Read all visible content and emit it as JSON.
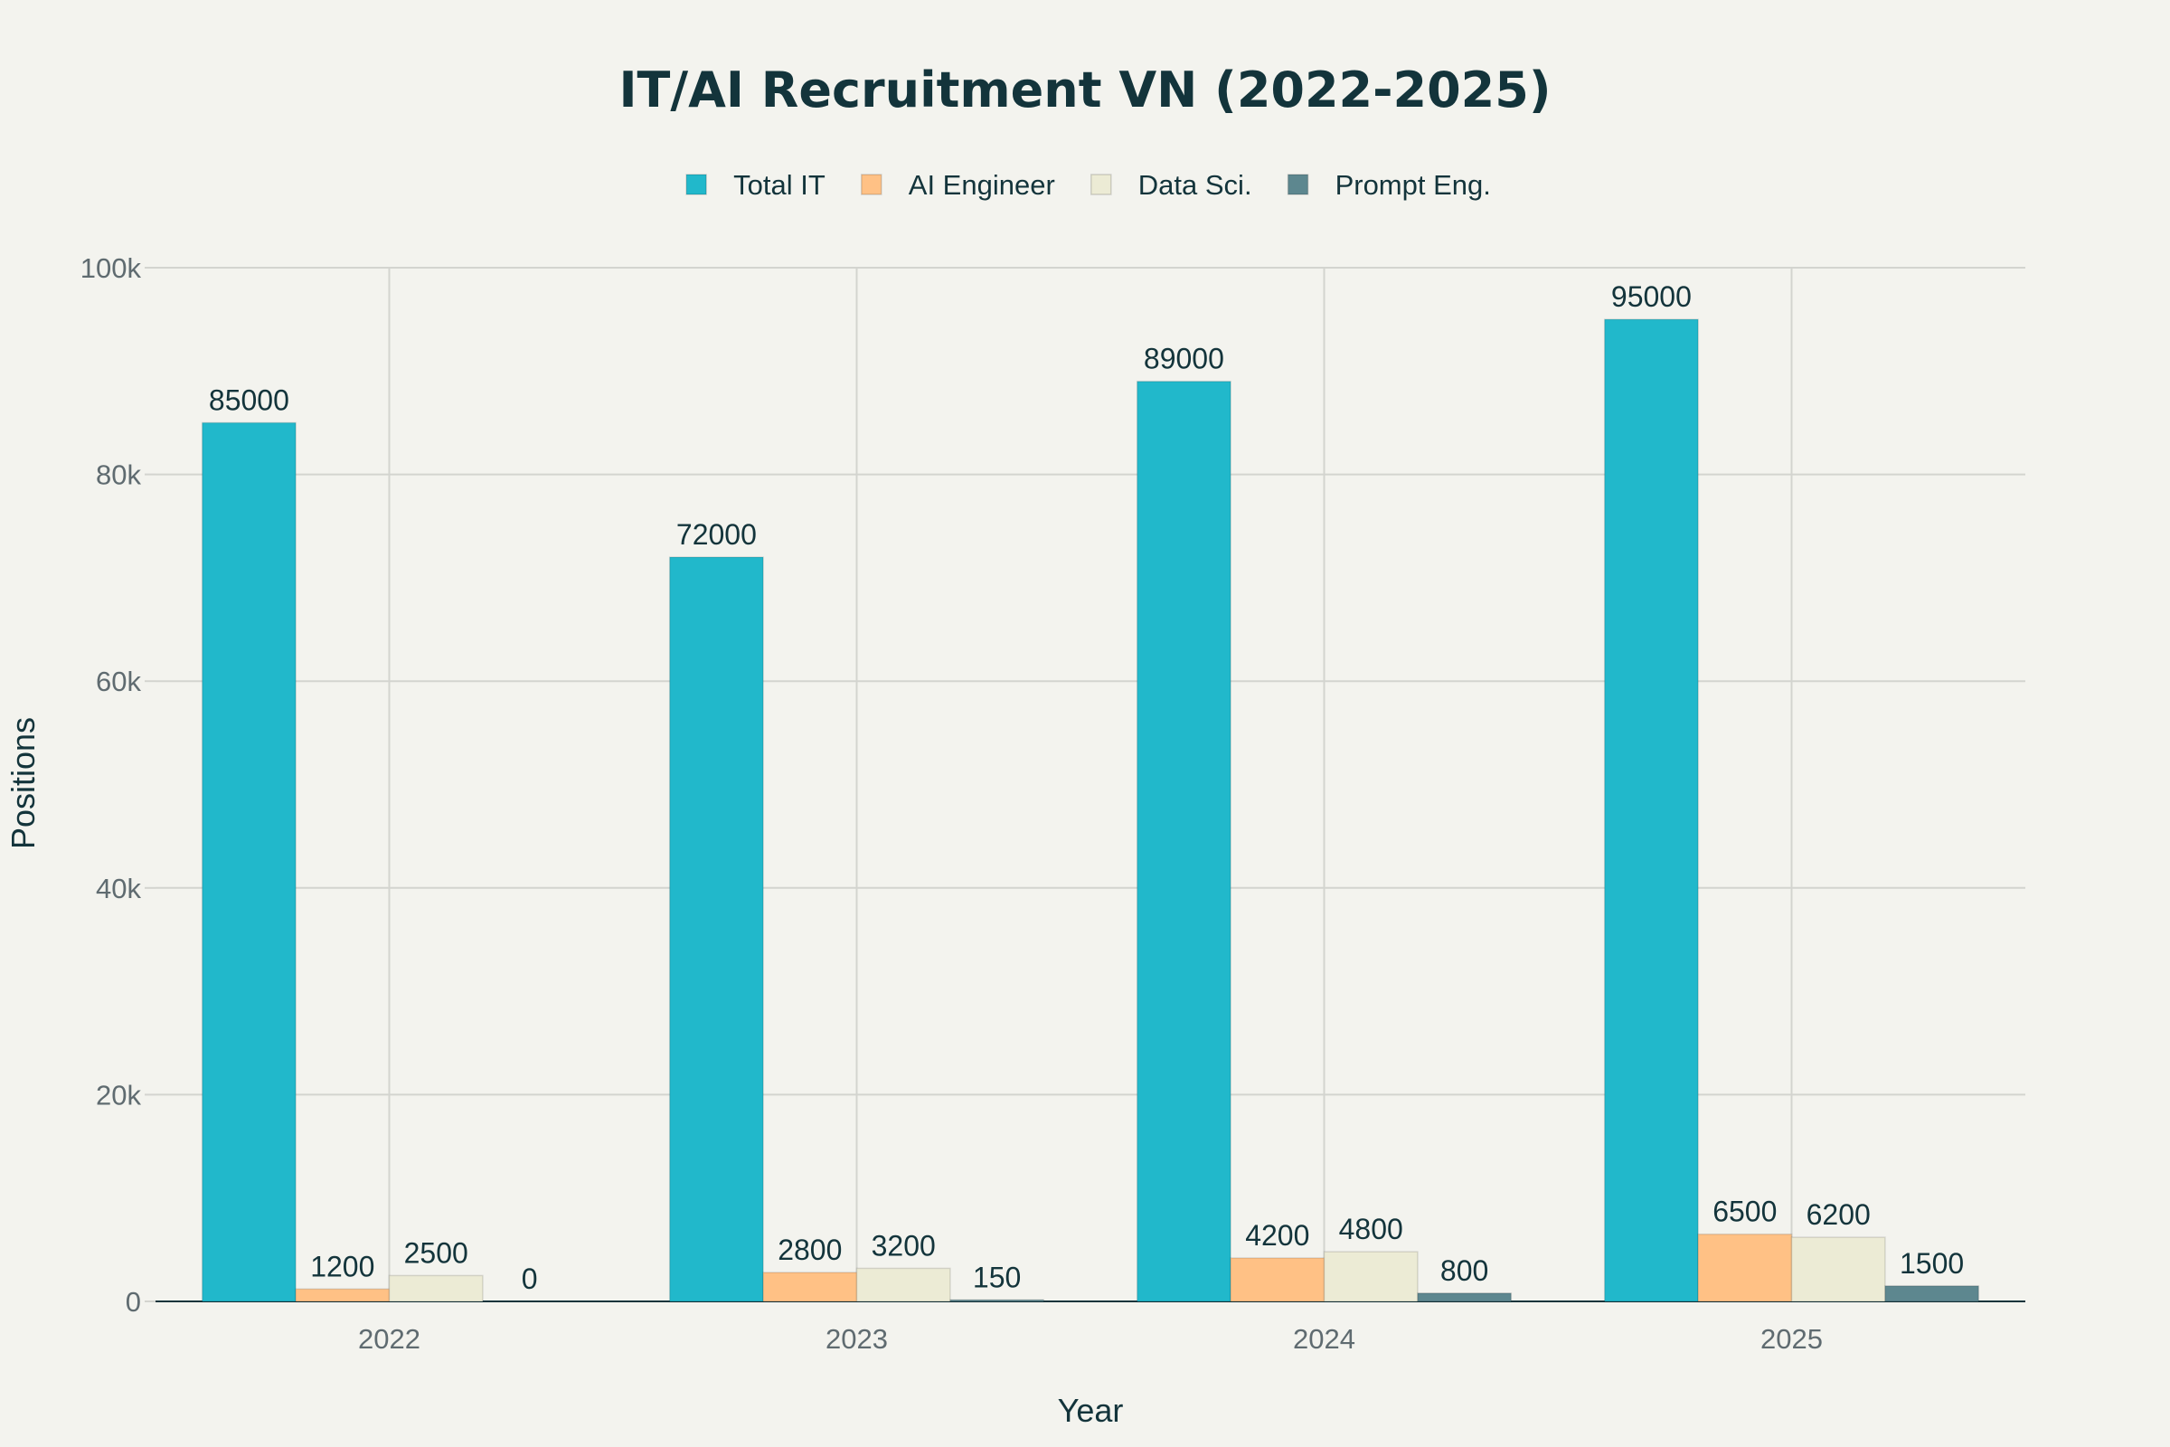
{
  "chart_data": {
    "type": "bar",
    "title": "IT/AI Recruitment VN (2022-2025)",
    "xlabel": "Year",
    "ylabel": "Positions",
    "categories": [
      "2022",
      "2023",
      "2024",
      "2025"
    ],
    "ylim": [
      0,
      100000
    ],
    "yticks": [
      0,
      20000,
      40000,
      60000,
      80000,
      100000
    ],
    "ytick_labels": [
      "0",
      "20k",
      "40k",
      "60k",
      "80k",
      "100k"
    ],
    "grid": true,
    "legend_position": "top",
    "series": [
      {
        "name": "Total IT",
        "color": "#21b8cb",
        "values": [
          85000,
          72000,
          89000,
          95000
        ]
      },
      {
        "name": "AI Engineer",
        "color": "#ffc185",
        "values": [
          1200,
          2800,
          4200,
          6500
        ]
      },
      {
        "name": "Data Sci.",
        "color": "#ecebd5",
        "values": [
          2500,
          3200,
          4800,
          6200
        ]
      },
      {
        "name": "Prompt Eng.",
        "color": "#5d878f",
        "values": [
          0,
          150,
          800,
          1500
        ]
      }
    ],
    "data_labels": [
      [
        "85000",
        "72000",
        "89000",
        "95000"
      ],
      [
        "1200",
        "2800",
        "4200",
        "6500"
      ],
      [
        "2500",
        "3200",
        "4800",
        "6200"
      ],
      [
        "0",
        "150",
        "800",
        "1500"
      ]
    ]
  }
}
